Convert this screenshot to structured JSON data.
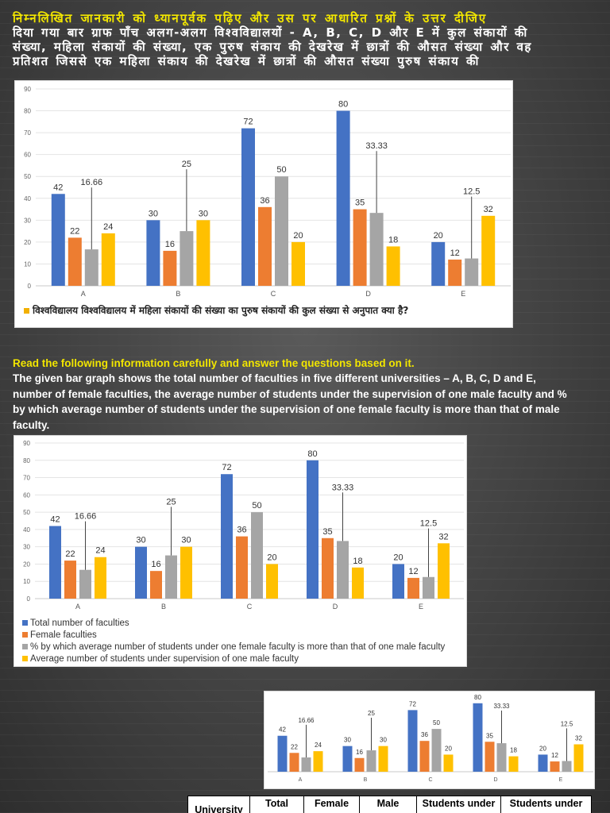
{
  "hindi": {
    "title": "निम्नलिखित जानकारी को ध्यानपूर्वक पढ़िए और उस पर आधारित प्रश्नों के उत्तर दीजिए",
    "body": "दिया गया बार ग्राफ पाँच अलग-अलग विश्वविद्यालयों - A, B, C, D और E में कुल संकायों की संख्या, महिला संकायों की संख्या, एक पुरुष संकाय की देखरेख में छात्रों की औसत संख्या और वह प्रतिशत जिससे एक महिला संकाय की देखरेख में छात्रों की औसत संख्या पुरुष संकाय की",
    "question": "विश्वविद्यालय विश्वविद्यालय में महिला संकायों की संख्या का पुरुष संकायों की कुल संख्या से अनुपात क्या है?"
  },
  "english": {
    "title": "Read the following information carefully and answer the questions based on it.",
    "body": "The given bar graph shows the total number of faculties in five different universities – A, B, C, D and E, number of female faculties, the average number of students under the supervision of one male faculty and % by which average number of students under the supervision of one female faculty is more than that of male faculty."
  },
  "colors": {
    "total": "#4472c4",
    "female": "#ed7d31",
    "percent": "#a5a5a5",
    "avg": "#ffc000"
  },
  "legend": [
    {
      "label": "Total number of faculties"
    },
    {
      "label": "Female faculties"
    },
    {
      "label": "% by which average number of students under one female faculty is more than that of one male faculty"
    },
    {
      "label": "Average number of students under supervision of one male faculty"
    }
  ],
  "table": {
    "headers": [
      "University",
      "Total",
      "Female",
      "Male",
      "Students under",
      "Students under"
    ]
  },
  "chart_data": {
    "type": "bar",
    "categories": [
      "A",
      "B",
      "C",
      "D",
      "E"
    ],
    "series": [
      {
        "name": "Total number of faculties",
        "values": [
          42,
          30,
          72,
          80,
          20
        ]
      },
      {
        "name": "Female faculties",
        "values": [
          22,
          16,
          36,
          35,
          12
        ]
      },
      {
        "name": "% by which average number of students under one female faculty is more than that of one male faculty",
        "values": [
          16.66,
          25,
          50,
          33.33,
          12.5
        ]
      },
      {
        "name": "Average number of students under supervision of one male faculty",
        "values": [
          24,
          30,
          20,
          18,
          32
        ]
      }
    ],
    "data_labels": [
      [
        "42",
        "22",
        "16.66",
        "24"
      ],
      [
        "30",
        "16",
        "25",
        "30"
      ],
      [
        "72",
        "36",
        "50",
        "20"
      ],
      [
        "80",
        "35",
        "33.33",
        "18"
      ],
      [
        "20",
        "12",
        "12.5",
        "32"
      ]
    ],
    "ylim": [
      0,
      90
    ],
    "yticks": [
      "0",
      "10",
      "20",
      "30",
      "40",
      "50",
      "60",
      "70",
      "80",
      "90"
    ],
    "grid": true,
    "legend_position": "bottom"
  }
}
